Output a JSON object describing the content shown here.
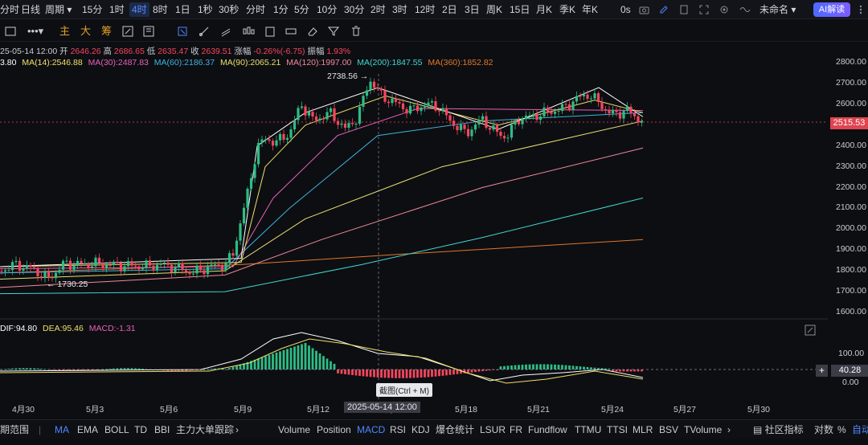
{
  "topbar": {
    "items": [
      "分时",
      "日线",
      "周期",
      "15分",
      "1时",
      "4时",
      "8时",
      "1日",
      "1秒",
      "30秒",
      "分时",
      "1分",
      "5分",
      "10分",
      "30分",
      "2时",
      "3时",
      "12时",
      "2日",
      "3日",
      "周K",
      "15日",
      "月K",
      "季K",
      "年K"
    ],
    "right": {
      "seconds": "0s",
      "layout_name": "未命名",
      "ai_label": "AI解读"
    }
  },
  "toolbar2": {
    "indicator_tabs": [
      "主",
      "大",
      "筹"
    ]
  },
  "ohlc": {
    "date": "25-05-14 12:00",
    "open_label": "开",
    "open": "2646.26",
    "high_label": "高",
    "high": "2686.65",
    "low_label": "低",
    "low": "2635.47",
    "close_label": "收",
    "close": "2639.51",
    "change_label": "涨幅",
    "change": "-0.26%(-6.75)",
    "amp_label": "振幅",
    "amp": "1.93%"
  },
  "ma_legend": [
    {
      "text": "3.80",
      "color": "#ffffff"
    },
    {
      "text": "MA(14):2546.88",
      "color": "#f0e06a"
    },
    {
      "text": "MA(30):2487.83",
      "color": "#e860b8"
    },
    {
      "text": "MA(60):2186.37",
      "color": "#3fb4e0"
    },
    {
      "text": "MA(90):2065.21",
      "color": "#e8e070"
    },
    {
      "text": "MA(120):1997.00",
      "color": "#f08a9a"
    },
    {
      "text": "MA(200):1847.55",
      "color": "#40d8d0"
    },
    {
      "text": "MA(360):1852.82",
      "color": "#e0782a"
    }
  ],
  "annotations": {
    "high": "2738.56",
    "low": "1730.25"
  },
  "last_price": "2515.53",
  "y_ticks": [
    "2800.00",
    "2700.00",
    "2600.00",
    "2500.00",
    "2400.00",
    "2300.00",
    "2200.00",
    "2100.00",
    "2000.00",
    "1900.00",
    "1800.00",
    "1700.00",
    "1600.00"
  ],
  "macd": {
    "dif": "DIF:94.80",
    "dea": "DEA:95.46",
    "macd": "MACD:-1.31",
    "ticks": [
      "100.00",
      "0.00"
    ],
    "tag": "40.28"
  },
  "x_ticks": [
    "4月30",
    "5月3",
    "5月6",
    "5月9",
    "5月12",
    "5月15",
    "5月18",
    "5月21",
    "5月24",
    "5月27",
    "5月30"
  ],
  "crosshair": {
    "date": "2025-05-14 12:00",
    "screenshot": "截图(Ctrl + M)"
  },
  "bottombar": {
    "left": "期范围",
    "main": [
      "MA",
      "EMA",
      "BOLL",
      "TD",
      "BBI",
      "主力大单跟踪"
    ],
    "sub": [
      "Volume",
      "Position",
      "MACD",
      "RSI",
      "KDJ",
      "爆仓统计",
      "LSUR",
      "FR",
      "Fundflow",
      "TTMU",
      "TTSI",
      "MLR",
      "BSV",
      "TVolume"
    ],
    "right": [
      "社区指标",
      "对数",
      "%",
      "自动"
    ]
  },
  "colors": {
    "up": "#2ebd85",
    "down": "#f6465d",
    "bg": "#0d0e12",
    "accent": "#4f86ff"
  }
}
